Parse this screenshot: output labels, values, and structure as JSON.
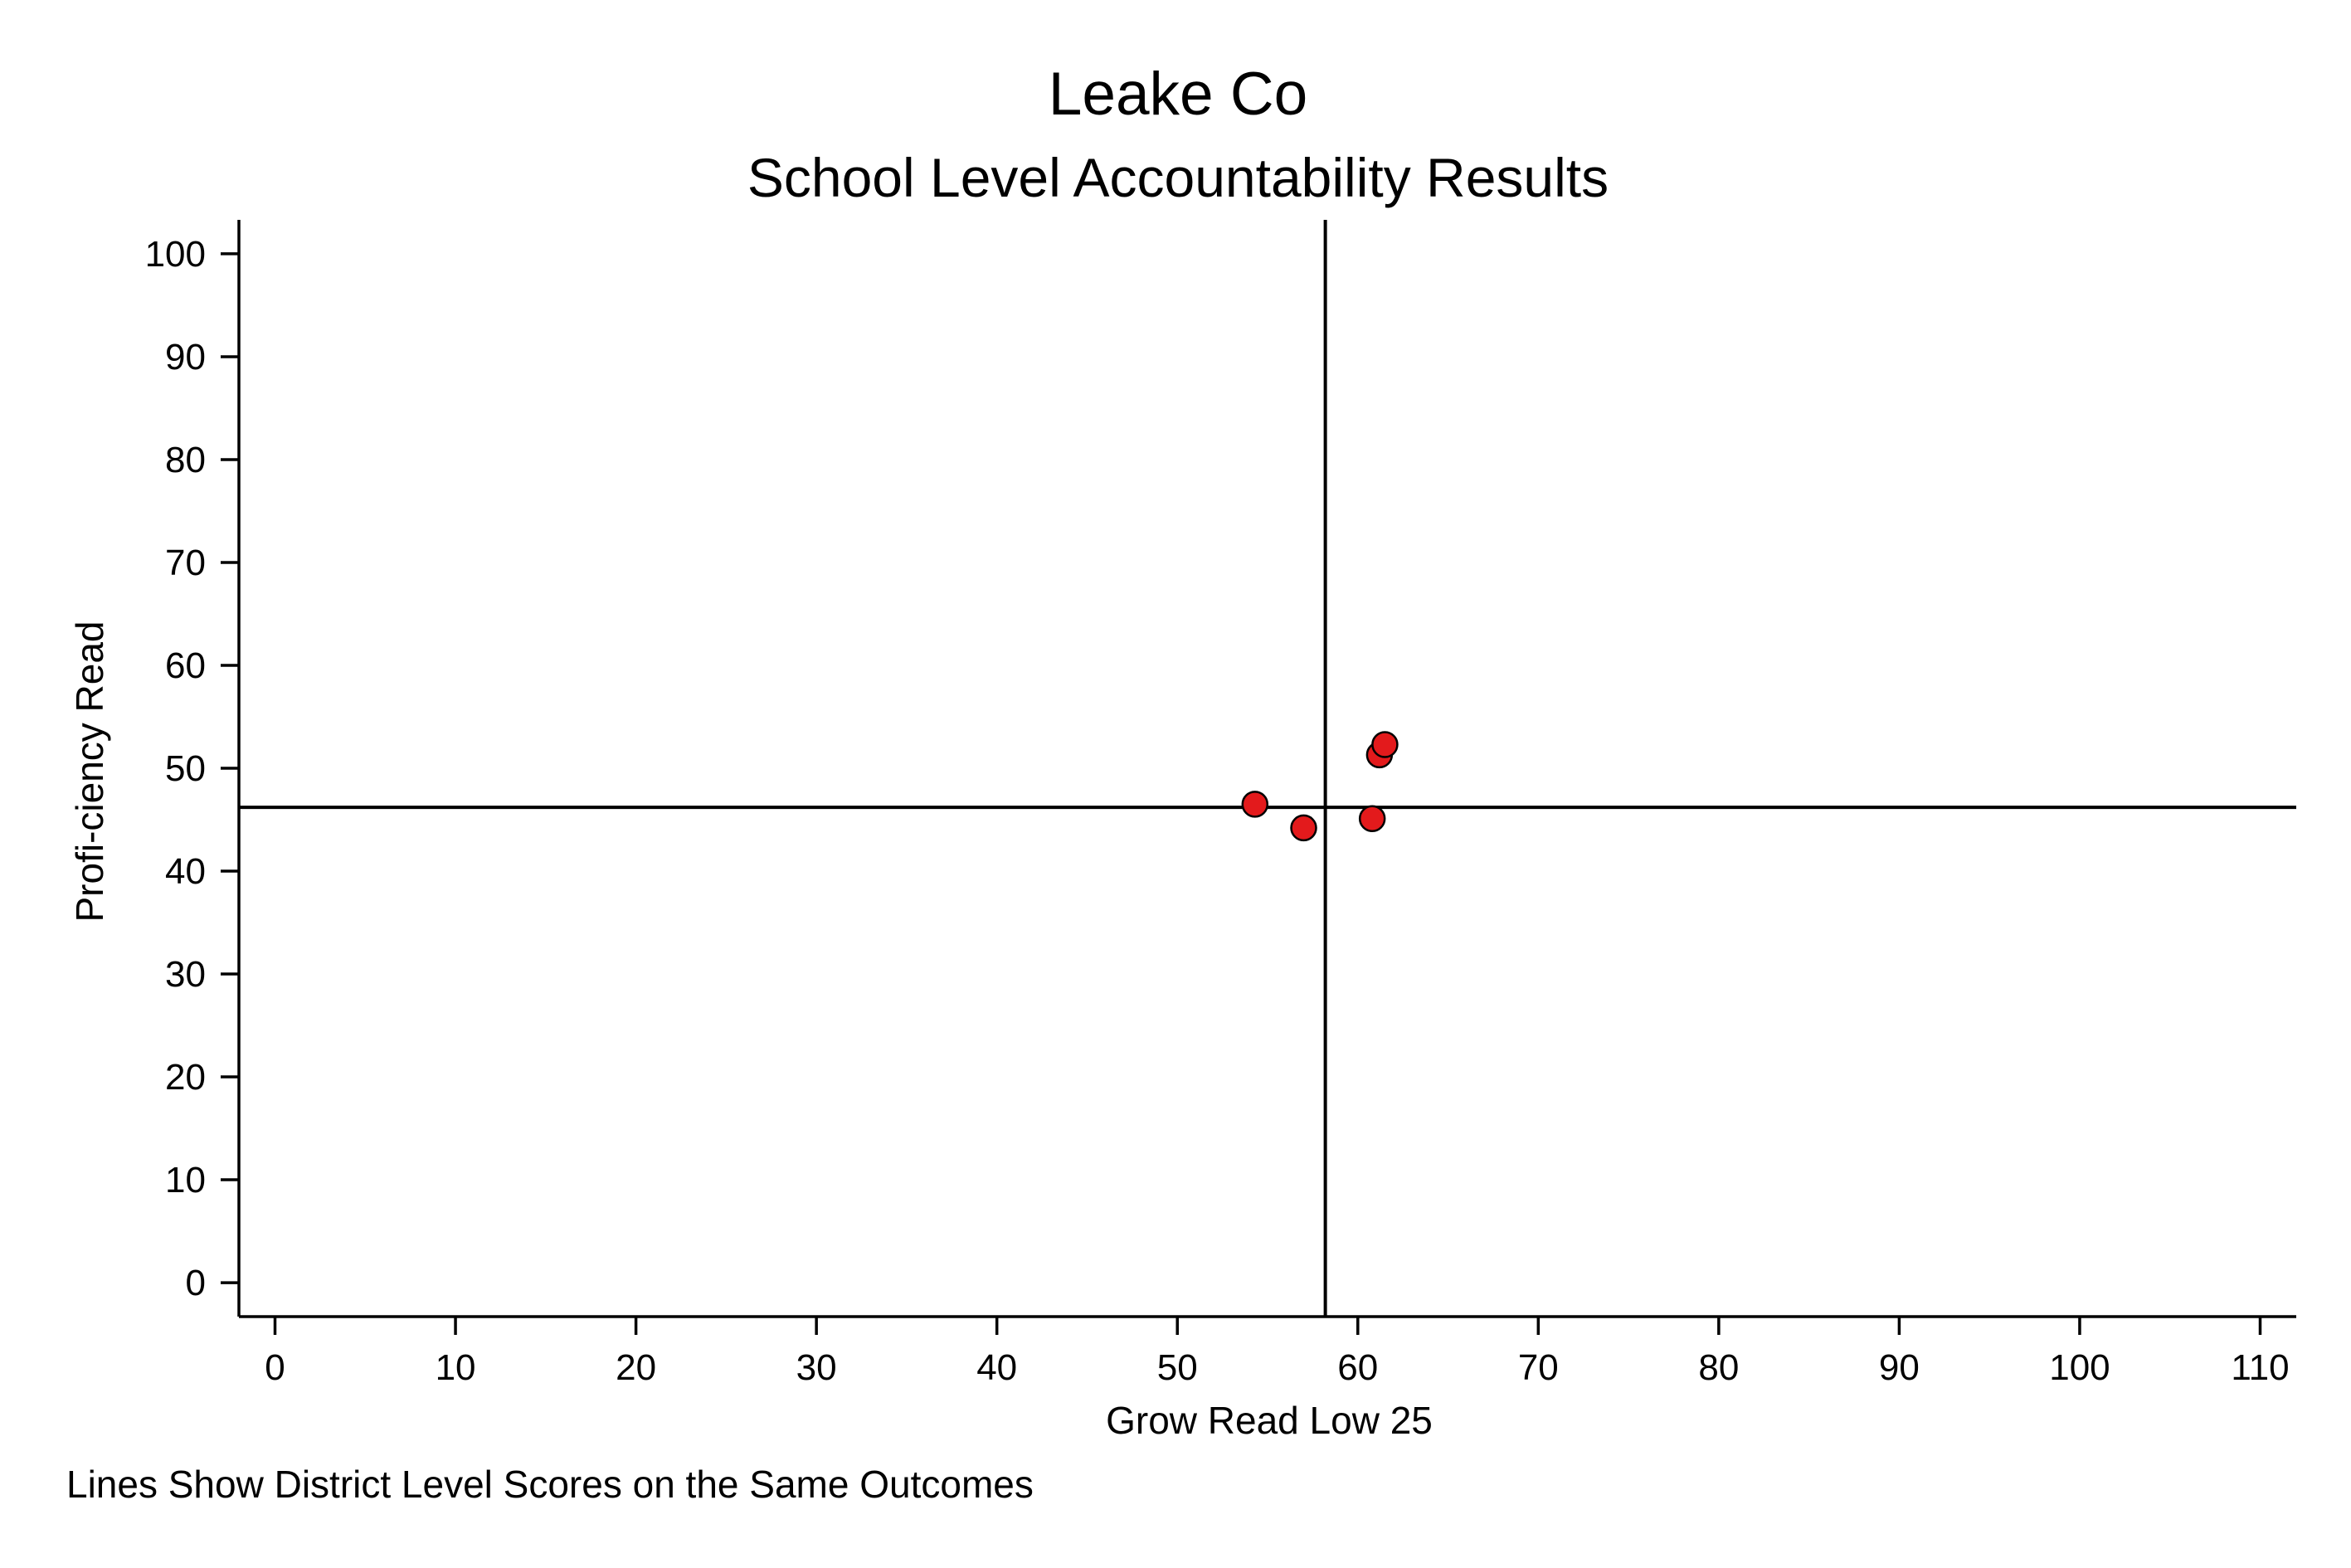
{
  "chart_data": {
    "type": "scatter",
    "title": "Leake Co",
    "subtitle": "School Level Accountability Results",
    "xlabel": "Grow Read Low 25",
    "ylabel": "Profi-ciency Read",
    "note": "Lines Show District Level Scores on the Same Outcomes",
    "xlim": [
      -2,
      112
    ],
    "ylim": [
      -3.3,
      103.3
    ],
    "x_ticks": [
      0,
      10,
      20,
      30,
      40,
      50,
      60,
      70,
      80,
      90,
      100,
      110
    ],
    "y_ticks": [
      0,
      10,
      20,
      30,
      40,
      50,
      60,
      70,
      80,
      90,
      100
    ],
    "x_tick_labels": [
      "0",
      "10",
      "20",
      "30",
      "40",
      "50",
      "60",
      "70",
      "80",
      "90",
      "100",
      "110"
    ],
    "y_tick_labels": [
      "0",
      "10",
      "20",
      "30",
      "40",
      "50",
      "60",
      "70",
      "80",
      "90",
      "100"
    ],
    "points": [
      {
        "x": 54.3,
        "y": 46.5
      },
      {
        "x": 57.0,
        "y": 44.2
      },
      {
        "x": 60.8,
        "y": 45.1
      },
      {
        "x": 61.2,
        "y": 51.3
      },
      {
        "x": 61.5,
        "y": 52.3
      }
    ],
    "reference_lines": {
      "x": 58.2,
      "y": 46.2
    },
    "marker_color": "#e31a1c",
    "marker_edge_color": "#000000",
    "grid": false,
    "legend": "none"
  }
}
